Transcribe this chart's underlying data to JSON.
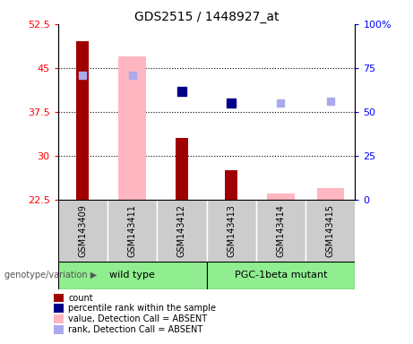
{
  "title": "GDS2515 / 1448927_at",
  "samples": [
    "GSM143409",
    "GSM143411",
    "GSM143412",
    "GSM143413",
    "GSM143414",
    "GSM143415"
  ],
  "ylim_left": [
    22.5,
    52.5
  ],
  "ylim_right": [
    0,
    100
  ],
  "yticks_left": [
    22.5,
    30,
    37.5,
    45,
    52.5
  ],
  "yticks_right": [
    0,
    25,
    50,
    75,
    100
  ],
  "count_values": [
    49.5,
    null,
    33.0,
    27.5,
    null,
    null
  ],
  "count_color": "#A00000",
  "absent_value_values": [
    null,
    47.0,
    null,
    null,
    23.5,
    24.5
  ],
  "absent_value_color": "#FFB6C1",
  "percentile_rank_values": [
    null,
    null,
    41.0,
    39.0,
    null,
    null
  ],
  "percentile_rank_color": "#00008B",
  "absent_rank_values": [
    43.8,
    43.8,
    null,
    null,
    39.0,
    39.3
  ],
  "absent_rank_color": "#AAAAEE",
  "wild_type_label": "wild type",
  "mutant_label": "PGC-1beta mutant",
  "wild_type_color": "#90EE90",
  "mutant_color": "#90EE90",
  "genotype_label": "genotype/variation",
  "legend_items": [
    {
      "label": "count",
      "color": "#A00000"
    },
    {
      "label": "percentile rank within the sample",
      "color": "#00008B"
    },
    {
      "label": "value, Detection Call = ABSENT",
      "color": "#FFB6C1"
    },
    {
      "label": "rank, Detection Call = ABSENT",
      "color": "#AAAAEE"
    }
  ],
  "absent_bar_width": 0.55,
  "count_bar_width": 0.25,
  "marker_size": 7,
  "absent_rank_marker_size": 6,
  "grid_yticks": [
    30,
    37.5,
    45
  ]
}
